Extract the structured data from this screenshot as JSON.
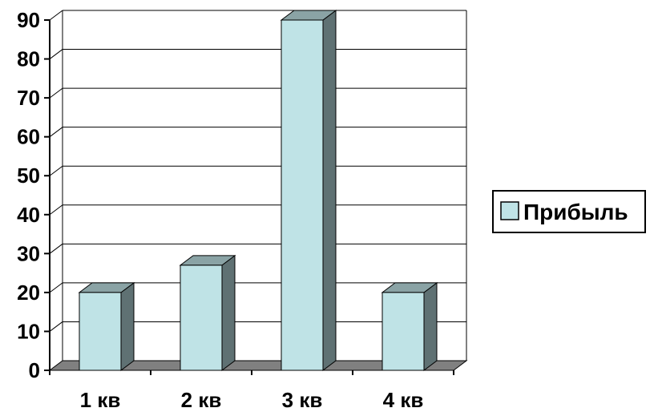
{
  "chart_data": {
    "type": "bar",
    "categories": [
      "1 кв",
      "2 кв",
      "3 кв",
      "4 кв"
    ],
    "series": [
      {
        "name": "Прибыль",
        "values": [
          20,
          27,
          90,
          20
        ]
      }
    ],
    "ylim": [
      0,
      90
    ],
    "yticks": [
      0,
      10,
      20,
      30,
      40,
      50,
      60,
      70,
      80,
      90
    ],
    "grid": true,
    "legend": "right",
    "bar_style": "3d",
    "colors": {
      "bar_front": "#bfe3e6",
      "bar_side": "#5f7173",
      "bar_top": "#8aa3a5",
      "floor": "#808080",
      "grid": "#000000"
    }
  }
}
